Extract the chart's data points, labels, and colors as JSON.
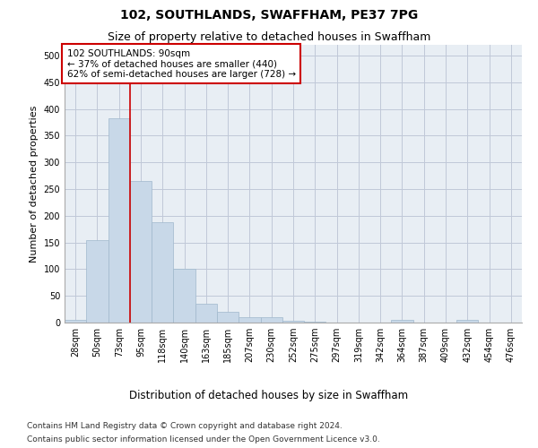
{
  "title": "102, SOUTHLANDS, SWAFFHAM, PE37 7PG",
  "subtitle": "Size of property relative to detached houses in Swaffham",
  "xlabel": "Distribution of detached houses by size in Swaffham",
  "ylabel": "Number of detached properties",
  "bar_color": "#c8d8e8",
  "bar_edge_color": "#a0b8cc",
  "grid_color": "#c0c8d8",
  "bg_color": "#e8eef4",
  "categories": [
    "28sqm",
    "50sqm",
    "73sqm",
    "95sqm",
    "118sqm",
    "140sqm",
    "163sqm",
    "185sqm",
    "207sqm",
    "230sqm",
    "252sqm",
    "275sqm",
    "297sqm",
    "319sqm",
    "342sqm",
    "364sqm",
    "387sqm",
    "409sqm",
    "432sqm",
    "454sqm",
    "476sqm"
  ],
  "values": [
    5,
    155,
    383,
    265,
    188,
    100,
    36,
    20,
    10,
    10,
    4,
    1,
    0,
    0,
    0,
    5,
    0,
    0,
    5,
    0,
    0
  ],
  "vline_x_index": 2.5,
  "vline_color": "#cc0000",
  "annotation_text": "102 SOUTHLANDS: 90sqm\n← 37% of detached houses are smaller (440)\n62% of semi-detached houses are larger (728) →",
  "annotation_box_color": "#ffffff",
  "annotation_box_edge_color": "#cc0000",
  "ylim": [
    0,
    520
  ],
  "yticks": [
    0,
    50,
    100,
    150,
    200,
    250,
    300,
    350,
    400,
    450,
    500
  ],
  "footnote_line1": "Contains HM Land Registry data © Crown copyright and database right 2024.",
  "footnote_line2": "Contains public sector information licensed under the Open Government Licence v3.0.",
  "title_fontsize": 10,
  "subtitle_fontsize": 9,
  "annotation_fontsize": 7.5,
  "footnote_fontsize": 6.5,
  "ylabel_fontsize": 8,
  "xlabel_fontsize": 8.5,
  "tick_fontsize": 7
}
